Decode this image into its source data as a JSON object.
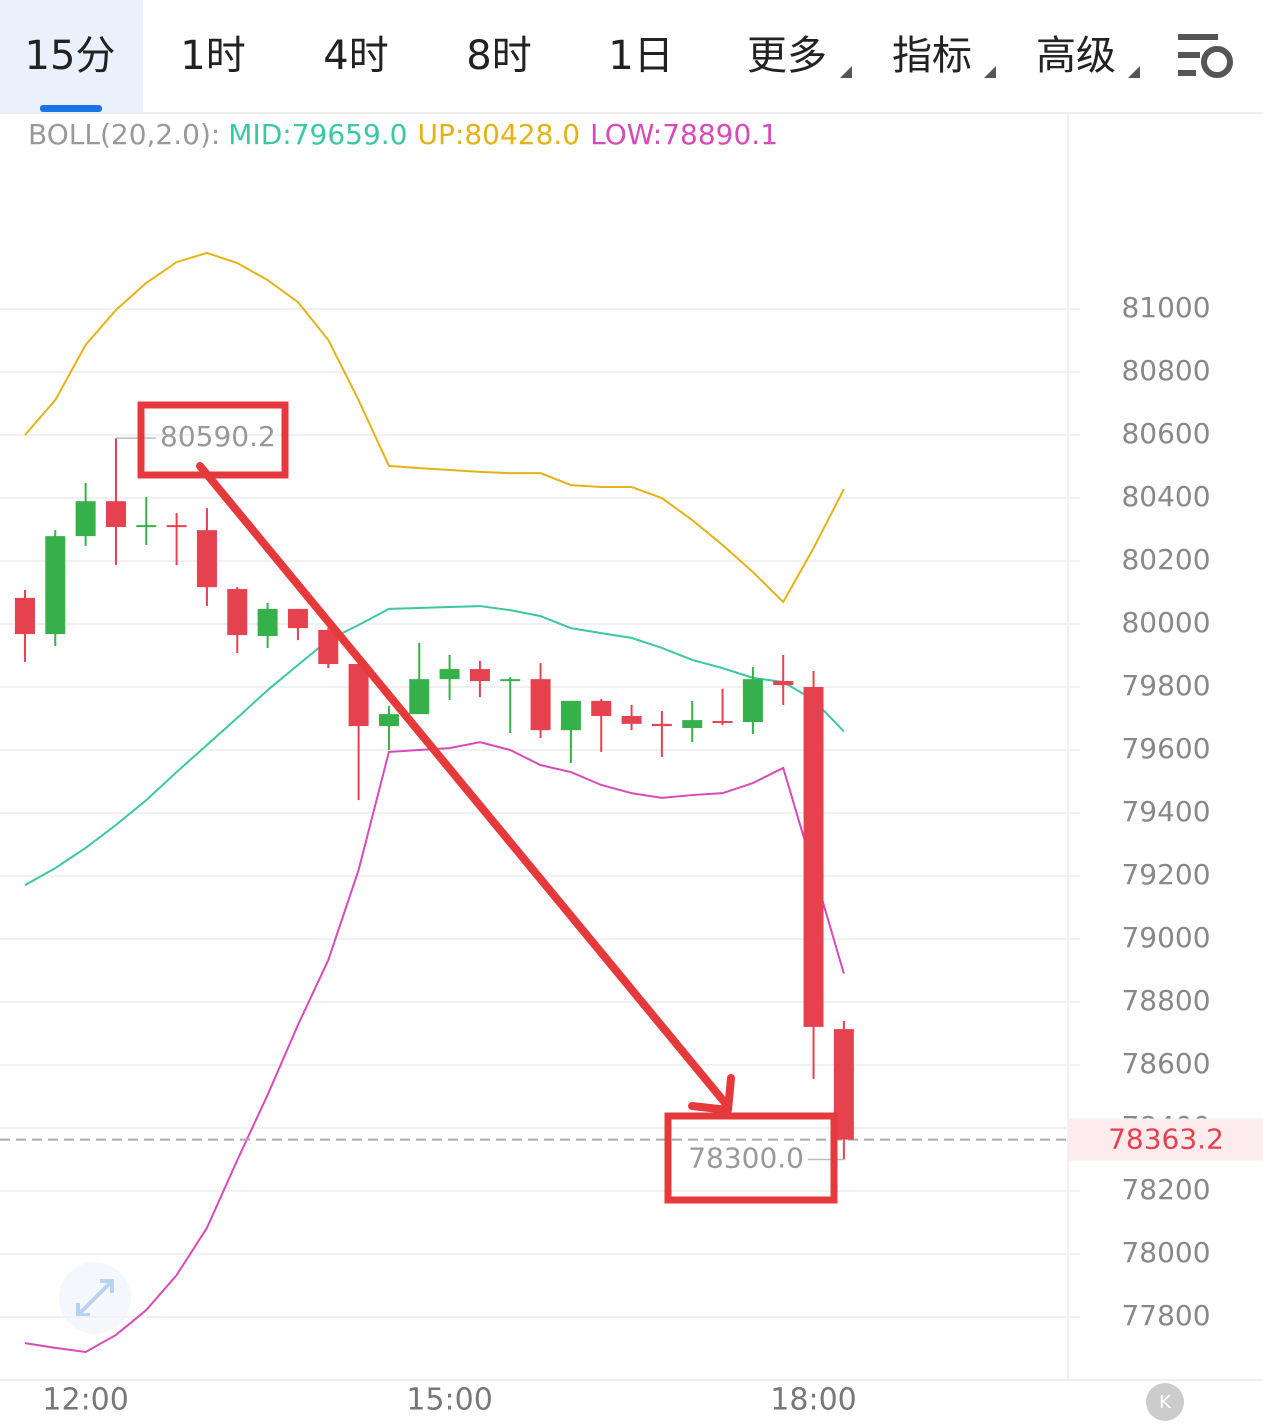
{
  "tabs": [
    "15分",
    "1时",
    "4时",
    "8时",
    "1日",
    "更多",
    "指标",
    "高级"
  ],
  "indicator_legend": {
    "label": "BOLL(20,2.0):",
    "items": [
      {
        "text": "MID:79659.0",
        "color": "#3cc7a4"
      },
      {
        "text": "UP:80428.0",
        "color": "#e5b216"
      },
      {
        "text": "LOW:78890.1",
        "color": "#d84ab8"
      }
    ]
  },
  "chart_data": {
    "type": "candlestick",
    "categories": [
      null,
      null,
      "12:00",
      null,
      null,
      null,
      null,
      null,
      null,
      null,
      null,
      null,
      null,
      null,
      "15:00",
      null,
      null,
      null,
      null,
      null,
      null,
      null,
      null,
      null,
      null,
      null,
      "18:00",
      null
    ],
    "open": [
      80083,
      79968,
      80279,
      80390,
      80308,
      80314,
      80298,
      80111,
      79962,
      80048,
      79981,
      79873,
      79676,
      79714,
      79825,
      79857,
      79819,
      79825,
      79663,
      79756,
      79708,
      79683,
      79670,
      79692,
      79689,
      79819,
      79800,
      78714
    ],
    "high": [
      80108,
      80298,
      80448,
      80590.2,
      80403,
      80352,
      80368,
      80117,
      80067,
      80048,
      79987,
      79879,
      79740,
      79940,
      79902,
      79883,
      79832,
      79876,
      79756,
      79762,
      79743,
      79724,
      79756,
      79794,
      79863,
      79902,
      79851,
      78740
    ],
    "low": [
      79879,
      79930,
      80248,
      80187,
      80251,
      80187,
      80057,
      79908,
      79924,
      79949,
      79860,
      79441,
      79600,
      79714,
      79759,
      79768,
      79654,
      79638,
      79559,
      79594,
      79663,
      79578,
      79625,
      79679,
      79651,
      79743,
      78556,
      78300
    ],
    "close": [
      79968,
      80279,
      80390,
      80308,
      80314,
      80308,
      80117,
      79965,
      80048,
      79987,
      79873,
      79676,
      79714,
      79825,
      79857,
      79819,
      79825,
      79663,
      79756,
      79708,
      79683,
      79676,
      79695,
      79686,
      79825,
      79806,
      78721,
      78363.2
    ],
    "up_color": "#36b04b",
    "down_color": "#e5414f",
    "overlays": [
      {
        "color": "#e5b216",
        "values": [
          80600,
          80711,
          80886,
          80997,
          81083,
          81149,
          81178,
          81146,
          81092,
          81022,
          80902,
          80711,
          80502,
          80495,
          80489,
          80483,
          80479,
          80479,
          80441,
          80435,
          80435,
          80400,
          80330,
          80251,
          80165,
          80070,
          80241,
          80428
        ]
      },
      {
        "color": "#3cc7a4",
        "values": [
          79171,
          79225,
          79289,
          79362,
          79441,
          79530,
          79616,
          79702,
          79790,
          79870,
          79949,
          79997,
          80048,
          80051,
          80054,
          80057,
          80044,
          80025,
          79987,
          79971,
          79956,
          79924,
          79886,
          79860,
          79829,
          79816,
          79759,
          79659
        ]
      },
      {
        "color": "#d84ab8",
        "values": [
          77717,
          77702,
          77689,
          77743,
          77822,
          77933,
          78083,
          78298,
          78505,
          78727,
          78933,
          79219,
          79594,
          79600,
          79606,
          79625,
          79600,
          79552,
          79530,
          79489,
          79463,
          79448,
          79457,
          79463,
          79495,
          79543,
          79219,
          78890.1
        ]
      }
    ],
    "ylim": [
      77600,
      81616
    ],
    "yticks": [
      77800,
      78000,
      78200,
      78400,
      78600,
      78800,
      79000,
      79200,
      79400,
      79600,
      79800,
      80000,
      80200,
      80400,
      80600,
      80800,
      81000
    ],
    "grid": true,
    "annotations": [
      "80590.2",
      "78300.0"
    ],
    "last_price_label": "78363.2"
  }
}
